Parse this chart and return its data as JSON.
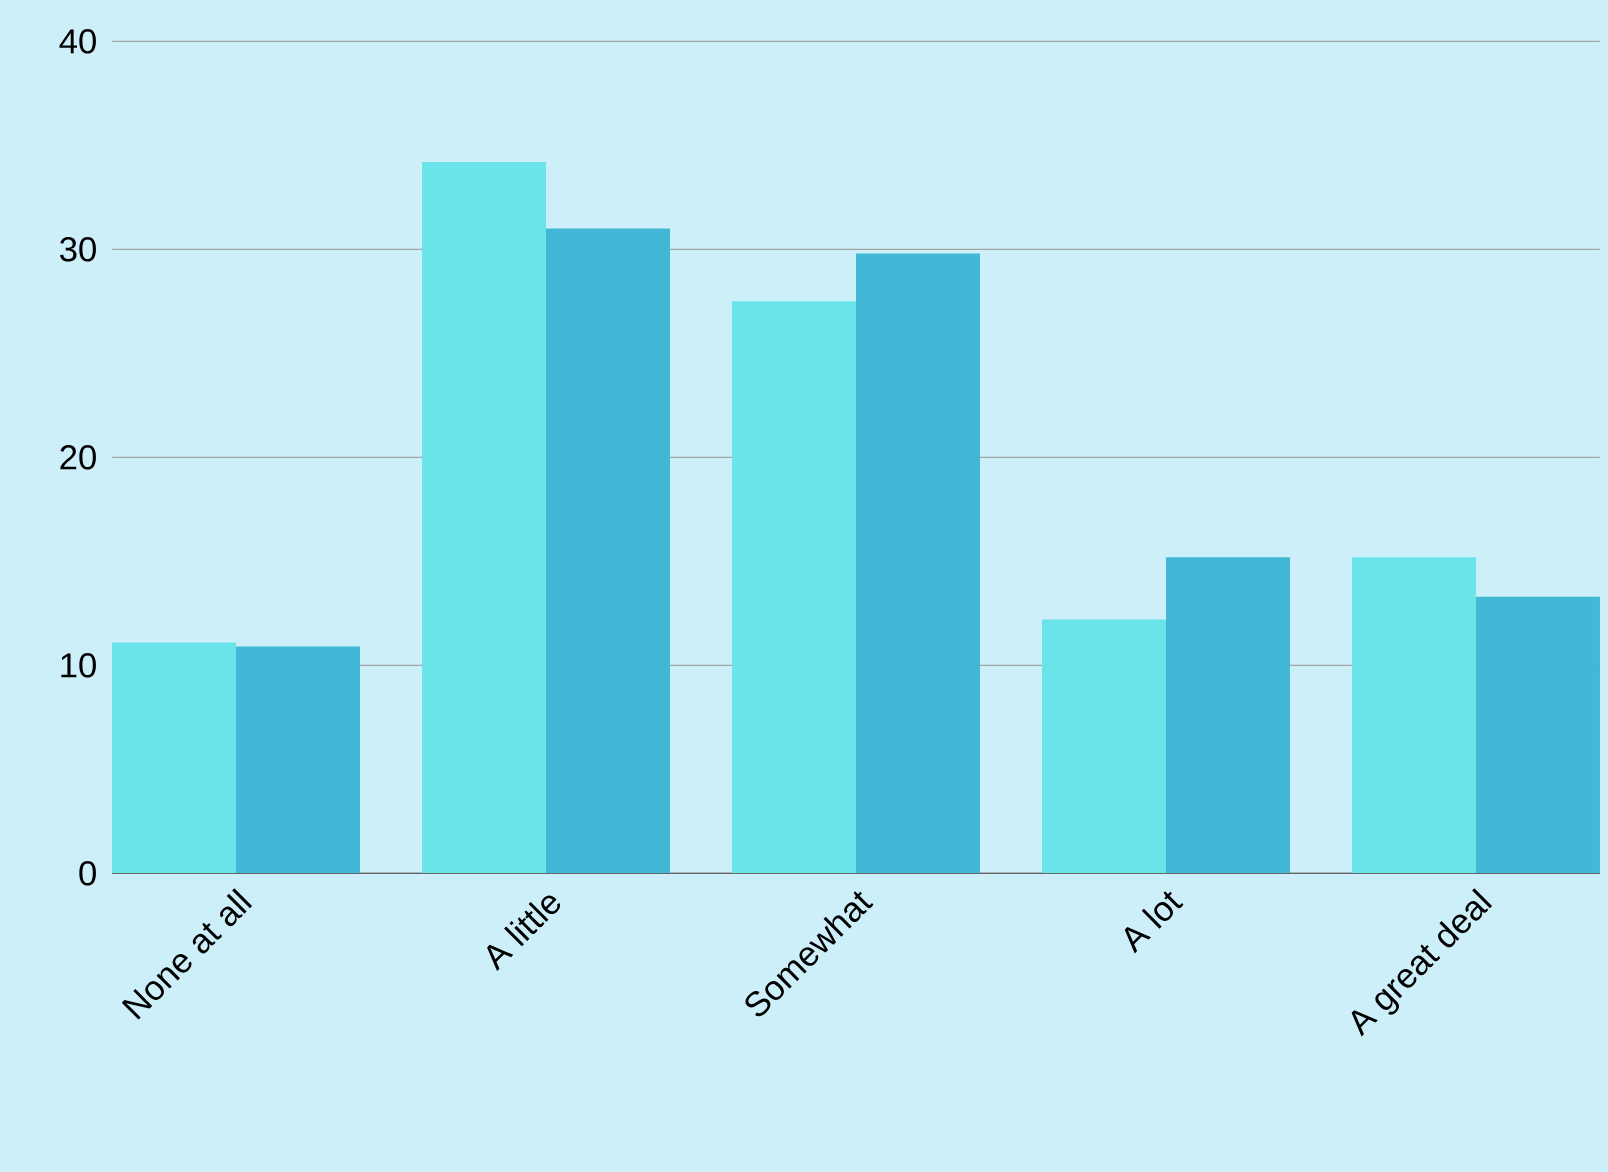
{
  "chart_data": {
    "type": "bar",
    "categories": [
      "None at all",
      "A little",
      "Somewhat",
      "A lot",
      "A great deal"
    ],
    "series": [
      {
        "color": "#6ae4e9",
        "values": [
          11.1,
          34.2,
          27.5,
          12.2,
          15.2
        ]
      },
      {
        "color": "#43b7d6",
        "values": [
          10.9,
          31.0,
          29.8,
          15.2,
          13.3
        ]
      }
    ],
    "ylim": [
      0,
      40
    ],
    "yticks": [
      0,
      10,
      20,
      30,
      40
    ],
    "grid": "y"
  }
}
